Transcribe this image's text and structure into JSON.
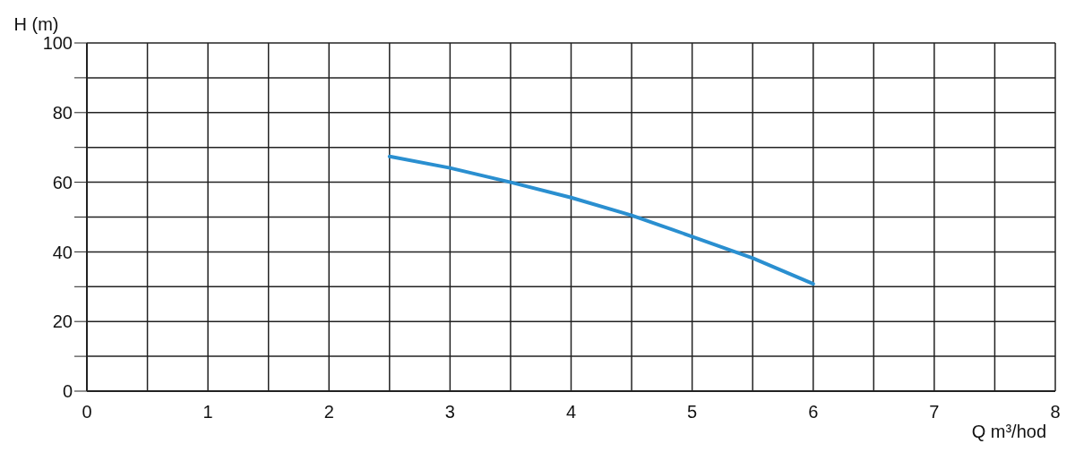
{
  "chart_data": {
    "type": "line",
    "xlabel": "Q m³/hod",
    "ylabel": "H (m)",
    "x": [
      2.5,
      3,
      3.5,
      4,
      4.5,
      5,
      5.5,
      6
    ],
    "series": [
      {
        "color": "#2a8fd0",
        "values": [
          67.4,
          64.1,
          60,
          55.6,
          50.5,
          44.4,
          38.2,
          30.8
        ]
      }
    ],
    "xlim": [
      0,
      8
    ],
    "ylim": [
      0,
      100
    ],
    "xticks": [
      0,
      {
        "value": 0.5,
        "label": null
      },
      1,
      {
        "value": 1.5,
        "label": null
      },
      2,
      {
        "value": 2.5,
        "label": null
      },
      3,
      {
        "value": 3.5,
        "label": null
      },
      4,
      {
        "value": 4.5,
        "label": null
      },
      5,
      {
        "value": 5.5,
        "label": null
      },
      6,
      {
        "value": 6.5,
        "label": null
      },
      7,
      {
        "value": 7.5,
        "label": null
      },
      8
    ],
    "yticks": [
      0,
      {
        "value": 10,
        "label": null
      },
      20,
      {
        "value": 30,
        "label": null
      },
      40,
      {
        "value": 50,
        "label": null
      },
      60,
      {
        "value": 70,
        "label": null
      },
      80,
      {
        "value": 90,
        "label": null
      },
      100
    ],
    "grid": true,
    "marker": "none",
    "line_style": "solid",
    "legend": false
  }
}
